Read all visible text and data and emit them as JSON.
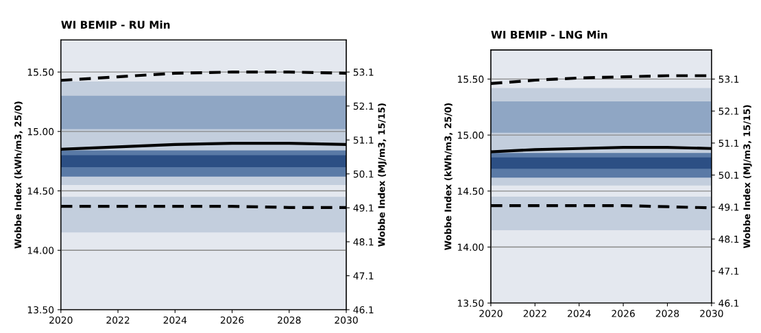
{
  "chart_data": [
    {
      "type": "line",
      "title": "WI BEMIP - RU Min",
      "ylabel": "Wobbe Index (kWh/m3, 25/0)",
      "y2label": "Wobbe Index (MJ/m3, 15/15)",
      "xlim": [
        2020,
        2030
      ],
      "xticks": [
        2020,
        2022,
        2024,
        2026,
        2028,
        2030
      ],
      "ylim": [
        13.5,
        15.77
      ],
      "yticks": [
        {
          "value": 13.5,
          "label": "13.50"
        },
        {
          "value": 14.0,
          "label": "14.00"
        },
        {
          "value": 14.5,
          "label": "14.50"
        },
        {
          "value": 15.0,
          "label": "15.00"
        },
        {
          "value": 15.5,
          "label": "15.50"
        }
      ],
      "y2lim": [
        46.1,
        54.045
      ],
      "y2ticks": [
        46.1,
        47.1,
        48.1,
        49.1,
        50.1,
        51.1,
        52.1,
        53.1
      ],
      "grid": "y",
      "bands": [
        {
          "axis": "y",
          "from": 14.55,
          "to": 15.42,
          "color": "#c3cedd"
        },
        {
          "axis": "y",
          "from": 15.02,
          "to": 15.3,
          "color": "#8fa6c4"
        },
        {
          "axis": "y",
          "from": 14.62,
          "to": 14.84,
          "color": "#5a7aa6"
        },
        {
          "axis": "y",
          "from": 14.7,
          "to": 14.8,
          "color": "#2c4f84"
        },
        {
          "axis": "y",
          "from": 14.15,
          "to": 14.45,
          "color": "#c3cedd"
        }
      ],
      "series": [
        {
          "color": "#000000",
          "line_style": "solid",
          "x": [
            2020,
            2022,
            2024,
            2026,
            2028,
            2030
          ],
          "values": [
            14.85,
            14.87,
            14.89,
            14.9,
            14.9,
            14.89
          ]
        },
        {
          "color": "#000000",
          "line_style": "dashed",
          "x": [
            2020,
            2022,
            2024,
            2026,
            2028,
            2030
          ],
          "values": [
            15.43,
            15.46,
            15.49,
            15.5,
            15.5,
            15.49
          ]
        },
        {
          "color": "#000000",
          "line_style": "dashed",
          "x": [
            2020,
            2022,
            2024,
            2026,
            2028,
            2030
          ],
          "values": [
            14.37,
            14.37,
            14.37,
            14.37,
            14.36,
            14.36
          ]
        }
      ]
    },
    {
      "type": "line",
      "title": "WI BEMIP - LNG Min",
      "ylabel": "Wobbe Index (kWh/m3, 25/0)",
      "y2label": "Wobbe Index (MJ/m3, 15/15)",
      "xlim": [
        2020,
        2030
      ],
      "xticks": [
        2020,
        2022,
        2024,
        2026,
        2028,
        2030
      ],
      "ylim": [
        13.5,
        15.76
      ],
      "yticks": [
        {
          "value": 13.5,
          "label": "13.50"
        },
        {
          "value": 14.0,
          "label": "14.00"
        },
        {
          "value": 14.5,
          "label": "14.50"
        },
        {
          "value": 15.0,
          "label": "15.00"
        },
        {
          "value": 15.5,
          "label": "15.50"
        }
      ],
      "y2lim": [
        46.1,
        54.01
      ],
      "y2ticks": [
        46.1,
        47.1,
        48.1,
        49.1,
        50.1,
        51.1,
        52.1,
        53.1
      ],
      "grid": "y",
      "bands": [
        {
          "axis": "y",
          "from": 14.55,
          "to": 15.42,
          "color": "#c3cedd"
        },
        {
          "axis": "y",
          "from": 15.02,
          "to": 15.3,
          "color": "#8fa6c4"
        },
        {
          "axis": "y",
          "from": 14.62,
          "to": 14.84,
          "color": "#5a7aa6"
        },
        {
          "axis": "y",
          "from": 14.7,
          "to": 14.8,
          "color": "#2c4f84"
        },
        {
          "axis": "y",
          "from": 14.15,
          "to": 14.45,
          "color": "#c3cedd"
        }
      ],
      "series": [
        {
          "color": "#000000",
          "line_style": "solid",
          "x": [
            2020,
            2022,
            2024,
            2026,
            2028,
            2030
          ],
          "values": [
            14.85,
            14.87,
            14.88,
            14.89,
            14.89,
            14.88
          ]
        },
        {
          "color": "#000000",
          "line_style": "dashed",
          "x": [
            2020,
            2022,
            2024,
            2026,
            2028,
            2030
          ],
          "values": [
            15.46,
            15.49,
            15.51,
            15.52,
            15.53,
            15.53
          ]
        },
        {
          "color": "#000000",
          "line_style": "dashed",
          "x": [
            2020,
            2022,
            2024,
            2026,
            2028,
            2030
          ],
          "values": [
            14.37,
            14.37,
            14.37,
            14.37,
            14.36,
            14.35
          ]
        }
      ]
    }
  ]
}
